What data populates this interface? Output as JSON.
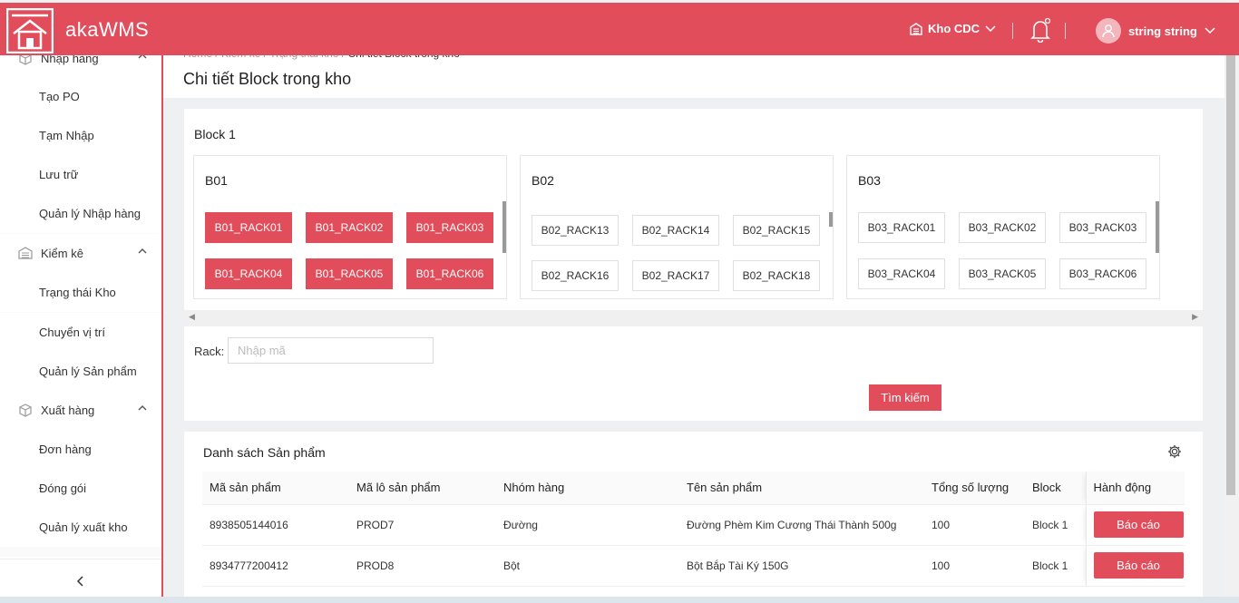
{
  "header": {
    "brand": "akaWMS",
    "warehouse": "Kho CDC",
    "user_name": "string string"
  },
  "sidebar": {
    "group_import": "Nhập hàng",
    "import_items": [
      "Tạo PO",
      "Tạm Nhập",
      "Lưu trữ",
      "Quản lý Nhập hàng"
    ],
    "group_inventory": "Kiểm kê",
    "inventory_items": [
      "Trạng thái Kho",
      "Chuyển vị trí",
      "Quản lý Sản phẩm"
    ],
    "group_export": "Xuất hàng",
    "export_items": [
      "Đơn hàng",
      "Đóng gói",
      "Quản lý xuất kho"
    ],
    "collapse_glyph": "<"
  },
  "breadcrumb": {
    "items": [
      "Home",
      "Kiểm kê",
      "Trạng thái kho"
    ],
    "current": "Chi tiết Block trong kho",
    "separator": "/"
  },
  "page_title": "Chi tiết Block trong kho",
  "block": {
    "label": "Block 1",
    "panels": [
      {
        "name": "B01",
        "racks": [
          "B01_RACK01",
          "B01_RACK02",
          "B01_RACK03",
          "B01_RACK04",
          "B01_RACK05",
          "B01_RACK06"
        ],
        "filled": true
      },
      {
        "name": "B02",
        "racks": [
          "B02_RACK13",
          "B02_RACK14",
          "B02_RACK15",
          "B02_RACK16",
          "B02_RACK17",
          "B02_RACK18"
        ],
        "filled": false
      },
      {
        "name": "B03",
        "racks": [
          "B03_RACK01",
          "B03_RACK02",
          "B03_RACK03",
          "B03_RACK04",
          "B03_RACK05",
          "B03_RACK06"
        ],
        "filled": false
      }
    ]
  },
  "search": {
    "label": "Rack:",
    "placeholder": "Nhập mã",
    "button": "Tìm kiếm"
  },
  "product_list": {
    "title": "Danh sách Sản phẩm",
    "columns": [
      "Mã sản phẩm",
      "Mã lô sản phẩm",
      "Nhóm hàng",
      "Tên sản phẩm",
      "Tổng số lượng",
      "Block",
      "Hành động"
    ],
    "rows": [
      [
        "8938505144016",
        "PROD7",
        "Đường",
        "Đường Phèm Kim Cương Thái Thành 500g",
        "100",
        "Block 1"
      ],
      [
        "8934777200412",
        "PROD8",
        "Bột",
        "Bột Bắp Tài Ký 150G",
        "100",
        "Block 1"
      ]
    ],
    "action_label": "Báo cáo"
  },
  "colors": {
    "accent": "#e24d5b"
  },
  "icons": [
    "warehouse-icon",
    "chevron-down-icon",
    "bell-icon",
    "user-icon",
    "gear-icon",
    "box-icon",
    "chevron-up-icon",
    "chevron-left-icon"
  ]
}
